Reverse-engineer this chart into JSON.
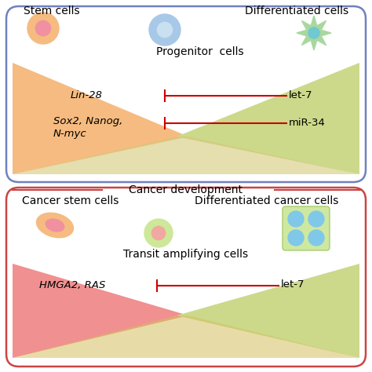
{
  "bg_color": "#ffffff",
  "panel1": {
    "box_color": "#7080c0",
    "title_stem": "Stem cells",
    "title_diff": "Differentiated cells",
    "progenitor_label": "Progenitor  cells",
    "orange_tri_color": "#f5bb80",
    "green_tri_color": "#ccd98a",
    "overlap_color": "#d4c878",
    "arrow_color": "#cc0000",
    "label_lin28": "Lin-28",
    "label_sox2": "Sox2, Nanog,\nN-myc",
    "label_let7": "let-7",
    "label_mir34": "miR-34"
  },
  "panel2": {
    "box_color": "#cc4444",
    "cancer_dev_label": "Cancer development",
    "cancer_stem_label": "Cancer stem cells",
    "diff_cancer_label": "Differentiated cancer cells",
    "transit_label": "Transit amplifying cells",
    "red_tri_color": "#f09090",
    "green_tri_color": "#ccd98a",
    "arrow_color": "#cc0000",
    "label_hmga2": "HMGA2, RAS",
    "label_let7": "let-7"
  }
}
